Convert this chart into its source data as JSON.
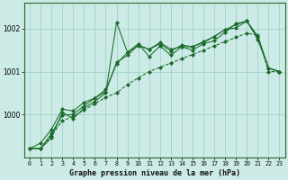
{
  "title": "Graphe pression niveau de la mer (hPa)",
  "bg_color": "#cceae6",
  "grid_color": "#aad4ce",
  "line_color": "#1a6b2a",
  "x_labels": [
    "0",
    "1",
    "2",
    "3",
    "4",
    "5",
    "6",
    "7",
    "8",
    "9",
    "10",
    "11",
    "12",
    "13",
    "14",
    "15",
    "16",
    "17",
    "18",
    "19",
    "20",
    "21",
    "22",
    "23"
  ],
  "ylim": [
    999.0,
    1002.6
  ],
  "yticks": [
    1000,
    1001,
    1002
  ],
  "series": [
    [
      999.2,
      999.2,
      999.5,
      999.85,
      999.95,
      1000.1,
      1000.25,
      1000.4,
      1000.5,
      1000.7,
      1000.85,
      1001.0,
      1001.1,
      1001.2,
      1001.3,
      1001.4,
      1001.5,
      1001.6,
      1001.7,
      1001.8,
      1001.9,
      1001.85,
      1001.0,
      1001.0
    ],
    [
      999.2,
      999.2,
      999.45,
      1000.05,
      999.9,
      1000.15,
      1000.3,
      1000.5,
      1002.15,
      1001.45,
      1001.65,
      1001.35,
      1001.6,
      1001.38,
      1001.58,
      1001.5,
      1001.65,
      1001.72,
      1001.92,
      1002.12,
      1002.18,
      1001.75,
      1001.08,
      1001.0
    ],
    [
      999.2,
      999.2,
      999.55,
      999.98,
      1000.0,
      1000.2,
      1000.38,
      1000.58,
      1001.18,
      1001.45,
      1001.6,
      1001.52,
      1001.65,
      1001.48,
      1001.62,
      1001.58,
      1001.7,
      1001.82,
      1001.98,
      1002.1,
      1002.18,
      1001.82,
      1001.08,
      1001.0
    ],
    [
      999.2,
      999.33,
      999.65,
      1000.12,
      1000.08,
      1000.28,
      1000.38,
      1000.53,
      1001.22,
      1001.38,
      1001.62,
      1001.52,
      1001.68,
      1001.52,
      1001.58,
      1001.58,
      1001.68,
      1001.82,
      1001.98,
      1002.02,
      1002.18,
      1001.82,
      1001.08,
      1001.0
    ]
  ]
}
